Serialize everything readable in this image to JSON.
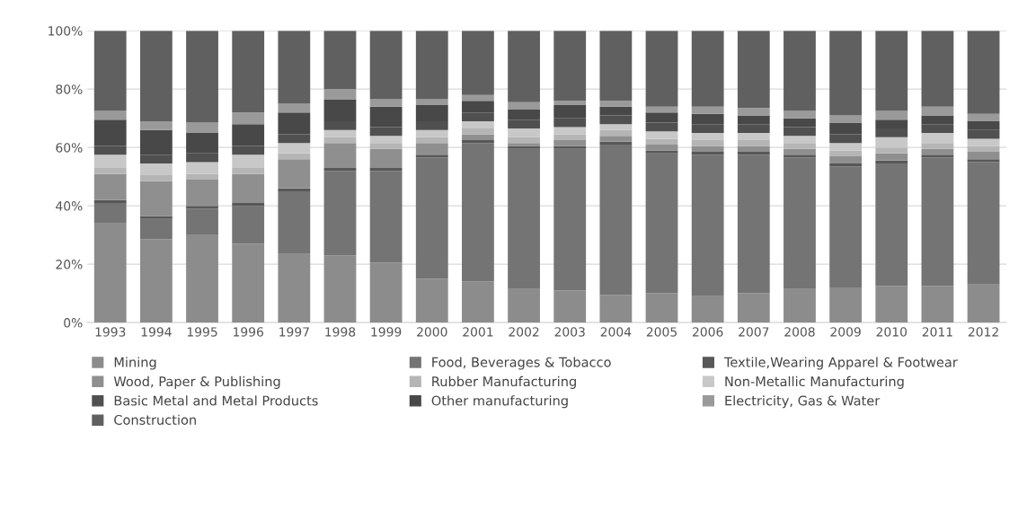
{
  "chart_data": {
    "type": "bar",
    "stacked": true,
    "categories": [
      "1993",
      "1994",
      "1995",
      "1996",
      "1997",
      "1998",
      "1999",
      "2000",
      "2001",
      "2002",
      "2003",
      "2004",
      "2005",
      "2006",
      "2007",
      "2008",
      "2009",
      "2010",
      "2011",
      "2012"
    ],
    "ylim": [
      0,
      100
    ],
    "yticks": [
      {
        "value": 0,
        "label": "0%"
      },
      {
        "value": 20,
        "label": "20%"
      },
      {
        "value": 40,
        "label": "40%"
      },
      {
        "value": 60,
        "label": "60%"
      },
      {
        "value": 80,
        "label": "80%"
      },
      {
        "value": 100,
        "label": "100%"
      }
    ],
    "grid": "y",
    "legend": "bottom",
    "series": [
      {
        "name": "Mining",
        "color": "#8c8c8c",
        "values": [
          34,
          28.5,
          30,
          27,
          23.5,
          23,
          20.5,
          15,
          14,
          11.5,
          11,
          9.5,
          10,
          9,
          10,
          11.5,
          12,
          12.5,
          12.5,
          13
        ]
      },
      {
        "name": "Food, Beverages & Tobacco",
        "color": "#747474",
        "values": [
          7,
          7,
          9,
          13,
          21.5,
          29,
          31.5,
          41.5,
          47.5,
          48,
          48.5,
          51.5,
          48,
          48.5,
          47.5,
          45,
          41.5,
          42,
          44,
          42
        ]
      },
      {
        "name": "Textile,Wearing Apparel & Footwear",
        "color": "#585858",
        "values": [
          1,
          1,
          1,
          1,
          1,
          1,
          1,
          1,
          1,
          1,
          1,
          1,
          1,
          1,
          1,
          1,
          1,
          1,
          1,
          1
        ]
      },
      {
        "name": "Wood, Paper & Publishing",
        "color": "#8f8f8f",
        "values": [
          9,
          12,
          9,
          10,
          10,
          8.5,
          6.5,
          4,
          2,
          1,
          2,
          2,
          2,
          2,
          2,
          2,
          2.5,
          2.5,
          2,
          2.5
        ]
      },
      {
        "name": "Rubber Manufacturing",
        "color": "#b5b5b5",
        "values": [
          2,
          2,
          2,
          2,
          2,
          2,
          2,
          2,
          2,
          2,
          2,
          2,
          2,
          2,
          2,
          2,
          2,
          2,
          2,
          2
        ]
      },
      {
        "name": "Non-Metallic Manufacturing",
        "color": "#c8c8c8",
        "values": [
          4.5,
          4,
          4,
          4.5,
          3.5,
          2.5,
          2.5,
          2.5,
          2.5,
          3,
          2.5,
          2,
          2.5,
          2.5,
          2.5,
          2.5,
          2.5,
          3.5,
          3.5,
          2.5
        ]
      },
      {
        "name": "Basic Metal and Metal Products",
        "color": "#505050",
        "values": [
          3,
          3,
          3,
          3,
          3,
          3,
          3,
          3,
          3,
          3,
          3,
          3,
          3,
          3,
          3,
          3,
          3,
          3,
          3,
          3
        ]
      },
      {
        "name": "Other manufacturing",
        "color": "#484848",
        "values": [
          9,
          8.5,
          7,
          7.5,
          7.5,
          7.5,
          7,
          5.5,
          4,
          3.5,
          4.5,
          3,
          3.5,
          3.5,
          3,
          3,
          4,
          3,
          3,
          3
        ]
      },
      {
        "name": "Electricity, Gas & Water",
        "color": "#9a9a9a",
        "values": [
          3,
          3,
          3.5,
          4,
          3,
          3.5,
          2.5,
          2,
          2,
          2.5,
          1.5,
          2,
          2,
          2.5,
          2.5,
          2.5,
          2.5,
          3,
          3,
          2.5
        ]
      },
      {
        "name": "Construction",
        "color": "#606060",
        "values": [
          27.5,
          31,
          31.5,
          28,
          25,
          20,
          23.5,
          23.5,
          22,
          24.5,
          24,
          24,
          26,
          26,
          26.5,
          27.5,
          29,
          27.5,
          26,
          28.5
        ]
      }
    ]
  }
}
